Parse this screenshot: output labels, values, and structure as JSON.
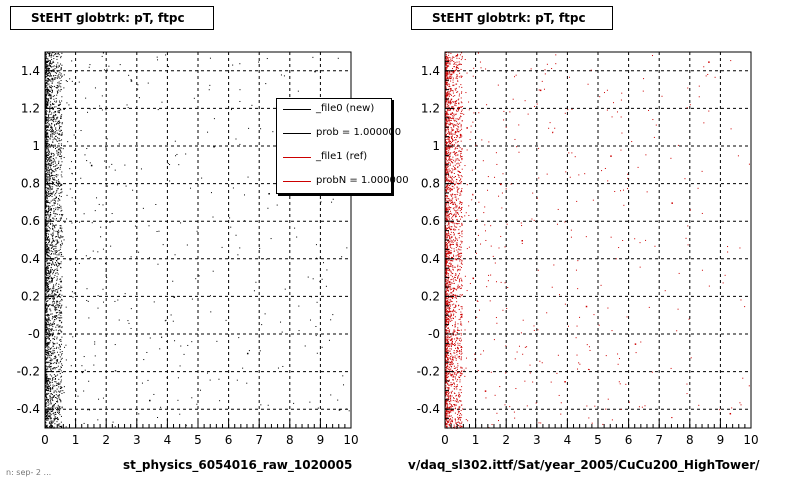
{
  "chart_data": [
    {
      "type": "scatter",
      "title": "StEHT globtrk: pT, ftpc",
      "xlabel": "st_physics_6054016_raw_1020005",
      "ylabel": "",
      "xlim": [
        0,
        10
      ],
      "ylim": [
        -0.5,
        1.5
      ],
      "xticks": [
        0,
        1,
        2,
        3,
        4,
        5,
        6,
        7,
        8,
        9,
        10
      ],
      "yticks": [
        -0.4,
        -0.2,
        0,
        0.2,
        0.4,
        0.6,
        0.8,
        1,
        1.2,
        1.4
      ],
      "ytick_labels": [
        "-0.4",
        "-0.2",
        "-0",
        "0.2",
        "0.4",
        "0.6",
        "0.8",
        "1",
        "1.2",
        "1.4"
      ],
      "grid": true,
      "series": [
        {
          "name": "_file0 (new)",
          "color": "#000000",
          "distribution": "dense band at x 0-0.5 over full y range, sparse tail to x 10",
          "points": [
            [
              0.05,
              1.45
            ],
            [
              0.1,
              1.3
            ],
            [
              0.2,
              1.1
            ],
            [
              0.15,
              0.9
            ],
            [
              0.3,
              0.7
            ],
            [
              0.25,
              0.5
            ],
            [
              0.1,
              0.3
            ],
            [
              0.35,
              0.1
            ],
            [
              0.2,
              -0.1
            ],
            [
              0.15,
              -0.3
            ],
            [
              0.4,
              -0.45
            ],
            [
              0.6,
              1.2
            ],
            [
              0.8,
              0.4
            ],
            [
              1.2,
              -0.2
            ],
            [
              1.5,
              0.9
            ],
            [
              2.1,
              0.6
            ],
            [
              2.8,
              1.35
            ],
            [
              3.4,
              -0.35
            ],
            [
              4.2,
              0.2
            ],
            [
              5.5,
              1.0
            ],
            [
              6.6,
              -0.1
            ],
            [
              7.3,
              0.75
            ],
            [
              8.8,
              1.4
            ],
            [
              9.6,
              -0.4
            ]
          ]
        }
      ],
      "legend": {
        "position": "top-right",
        "entries": [
          {
            "label": "_file0 (new)",
            "color": "#000000"
          },
          {
            "label": "prob = 1.000000",
            "color": "#000000"
          },
          {
            "label": "_file1 (ref)",
            "color": "#cc0000"
          },
          {
            "label": "probN = 1.000000",
            "color": "#cc0000"
          }
        ]
      }
    },
    {
      "type": "scatter",
      "title": "StEHT globtrk: pT, ftpc",
      "xlabel": "v/daq_sl302.ittf/Sat/year_2005/CuCu200_HighTower/",
      "ylabel": "",
      "xlim": [
        0,
        10
      ],
      "ylim": [
        -0.5,
        1.5
      ],
      "xticks": [
        0,
        1,
        2,
        3,
        4,
        5,
        6,
        7,
        8,
        9,
        10
      ],
      "yticks": [
        -0.4,
        -0.2,
        0,
        0.2,
        0.4,
        0.6,
        0.8,
        1,
        1.2,
        1.4
      ],
      "ytick_labels": [
        "-0.4",
        "-0.2",
        "-0",
        "0.2",
        "0.4",
        "0.6",
        "0.8",
        "1",
        "1.2",
        "1.4"
      ],
      "grid": true,
      "series": [
        {
          "name": "_file1 (ref)",
          "color": "#cc0000",
          "distribution": "dense band at x 0-0.5 over full y range, sparse tail to x 10",
          "points": [
            [
              0.05,
              1.4
            ],
            [
              0.15,
              1.2
            ],
            [
              0.1,
              1.0
            ],
            [
              0.3,
              0.8
            ],
            [
              0.2,
              0.6
            ],
            [
              0.35,
              0.4
            ],
            [
              0.1,
              0.2
            ],
            [
              0.25,
              0.0
            ],
            [
              0.4,
              -0.2
            ],
            [
              0.2,
              -0.4
            ],
            [
              0.7,
              1.1
            ],
            [
              0.9,
              0.3
            ],
            [
              1.3,
              -0.3
            ],
            [
              1.8,
              0.8
            ],
            [
              2.5,
              0.5
            ],
            [
              3.1,
              1.3
            ],
            [
              3.9,
              -0.25
            ],
            [
              4.6,
              0.15
            ],
            [
              5.4,
              0.95
            ],
            [
              6.2,
              -0.05
            ],
            [
              7.4,
              0.7
            ],
            [
              8.6,
              1.45
            ],
            [
              9.3,
              -0.42
            ]
          ]
        }
      ]
    }
  ],
  "footer_stub": "n: sep- 2 ..."
}
